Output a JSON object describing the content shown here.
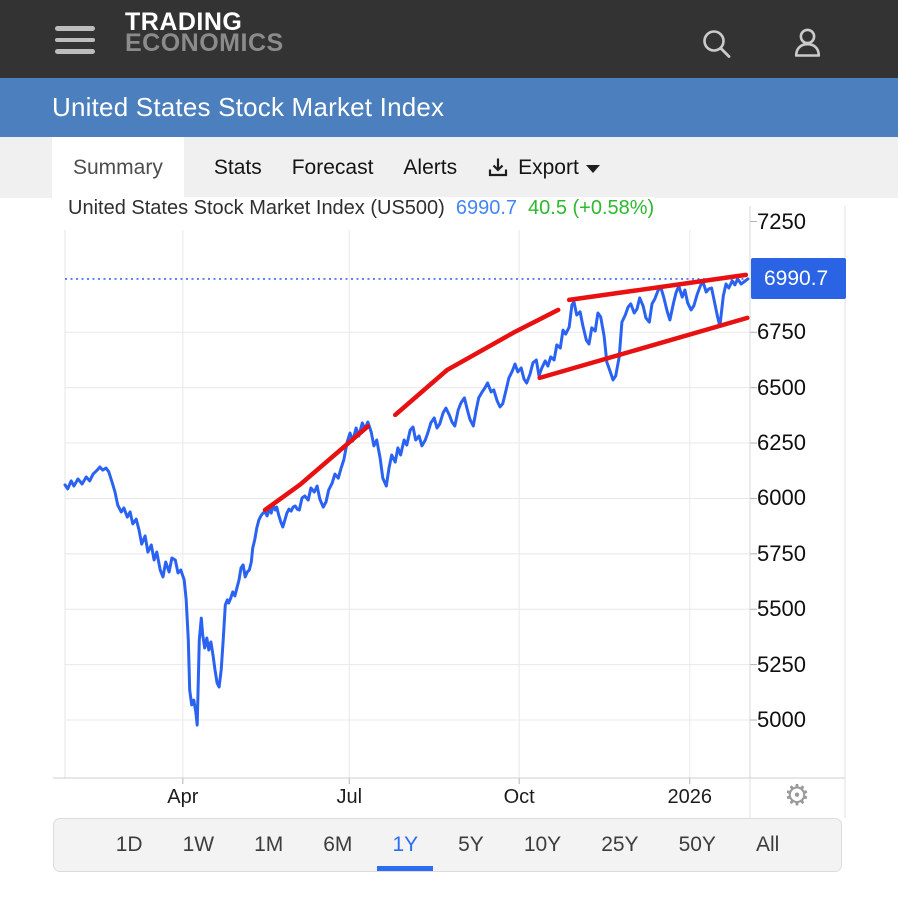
{
  "header": {
    "brand_line1": "TRADING",
    "brand_line2": "ECONOMICS",
    "icons": {
      "menu": "hamburger-icon",
      "search": "search-icon",
      "user": "user-icon"
    }
  },
  "banner": {
    "title": "United States Stock Market Index"
  },
  "tabs": {
    "items": [
      {
        "label": "Summary",
        "active": true
      },
      {
        "label": "Stats",
        "active": false
      },
      {
        "label": "Forecast",
        "active": false
      },
      {
        "label": "Alerts",
        "active": false
      }
    ],
    "export_label": "Export"
  },
  "chart_header": {
    "name": "United States Stock Market Index (US500)",
    "price": "6990.7",
    "change": "40.5 (+0.58%)"
  },
  "icons": {
    "gear_glyph": "⚙"
  },
  "chart_data": {
    "type": "line",
    "title": "United States Stock Market Index (US500)",
    "symbol": "US500",
    "last_price": 6990.7,
    "change": 40.5,
    "change_pct": "+0.58%",
    "range_selected": "1Y",
    "grid": true,
    "ylim": [
      4740,
      7215
    ],
    "y_ticks": [
      7250,
      6750,
      6500,
      6250,
      6000,
      5750,
      5500,
      5250,
      5000
    ],
    "x_ticks": [
      {
        "label": "Apr",
        "t": 0.172
      },
      {
        "label": "Jul",
        "t": 0.415
      },
      {
        "label": "Oct",
        "t": 0.663
      },
      {
        "label": "2026",
        "t": 0.912
      }
    ],
    "colors": {
      "line": "#2a62f2",
      "trend": "#e81010",
      "badge": "#2a63e4",
      "grid": "#e8e8e8",
      "dotted": "#3a6af0",
      "price_up": "#2db92d"
    },
    "series": [
      [
        0.0,
        6061
      ],
      [
        0.004,
        6043
      ],
      [
        0.009,
        6079
      ],
      [
        0.013,
        6056
      ],
      [
        0.019,
        6088
      ],
      [
        0.025,
        6065
      ],
      [
        0.031,
        6097
      ],
      [
        0.036,
        6079
      ],
      [
        0.041,
        6110
      ],
      [
        0.047,
        6128
      ],
      [
        0.051,
        6142
      ],
      [
        0.055,
        6128
      ],
      [
        0.06,
        6137
      ],
      [
        0.064,
        6120
      ],
      [
        0.069,
        6070
      ],
      [
        0.073,
        6029
      ],
      [
        0.077,
        5971
      ],
      [
        0.082,
        5939
      ],
      [
        0.086,
        5957
      ],
      [
        0.091,
        5916
      ],
      [
        0.095,
        5939
      ],
      [
        0.099,
        5885
      ],
      [
        0.104,
        5907
      ],
      [
        0.108,
        5858
      ],
      [
        0.112,
        5794
      ],
      [
        0.117,
        5831
      ],
      [
        0.121,
        5758
      ],
      [
        0.126,
        5790
      ],
      [
        0.13,
        5722
      ],
      [
        0.134,
        5758
      ],
      [
        0.139,
        5677
      ],
      [
        0.143,
        5646
      ],
      [
        0.147,
        5713
      ],
      [
        0.152,
        5668
      ],
      [
        0.156,
        5731
      ],
      [
        0.161,
        5722
      ],
      [
        0.165,
        5664
      ],
      [
        0.169,
        5677
      ],
      [
        0.174,
        5632
      ],
      [
        0.177,
        5542
      ],
      [
        0.18,
        5361
      ],
      [
        0.182,
        5135
      ],
      [
        0.185,
        5068
      ],
      [
        0.188,
        5090
      ],
      [
        0.191,
        5036
      ],
      [
        0.193,
        4977
      ],
      [
        0.196,
        5361
      ],
      [
        0.199,
        5460
      ],
      [
        0.201,
        5384
      ],
      [
        0.204,
        5325
      ],
      [
        0.207,
        5370
      ],
      [
        0.21,
        5316
      ],
      [
        0.213,
        5352
      ],
      [
        0.216,
        5293
      ],
      [
        0.219,
        5226
      ],
      [
        0.222,
        5167
      ],
      [
        0.225,
        5149
      ],
      [
        0.228,
        5226
      ],
      [
        0.231,
        5361
      ],
      [
        0.234,
        5519
      ],
      [
        0.237,
        5542
      ],
      [
        0.239,
        5528
      ],
      [
        0.242,
        5551
      ],
      [
        0.245,
        5578
      ],
      [
        0.248,
        5560
      ],
      [
        0.251,
        5596
      ],
      [
        0.254,
        5632
      ],
      [
        0.257,
        5686
      ],
      [
        0.26,
        5700
      ],
      [
        0.263,
        5646
      ],
      [
        0.266,
        5668
      ],
      [
        0.269,
        5677
      ],
      [
        0.272,
        5713
      ],
      [
        0.274,
        5776
      ],
      [
        0.277,
        5813
      ],
      [
        0.28,
        5867
      ],
      [
        0.283,
        5903
      ],
      [
        0.286,
        5921
      ],
      [
        0.289,
        5934
      ],
      [
        0.292,
        5939
      ],
      [
        0.295,
        5921
      ],
      [
        0.298,
        5952
      ],
      [
        0.301,
        5934
      ],
      [
        0.304,
        5970
      ],
      [
        0.307,
        5948
      ],
      [
        0.309,
        5961
      ],
      [
        0.312,
        5925
      ],
      [
        0.315,
        5894
      ],
      [
        0.318,
        5871
      ],
      [
        0.321,
        5903
      ],
      [
        0.324,
        5934
      ],
      [
        0.327,
        5952
      ],
      [
        0.33,
        5943
      ],
      [
        0.333,
        5961
      ],
      [
        0.336,
        5966
      ],
      [
        0.339,
        5952
      ],
      [
        0.342,
        5948
      ],
      [
        0.346,
        6002
      ],
      [
        0.35,
        6011
      ],
      [
        0.355,
        5993
      ],
      [
        0.359,
        6047
      ],
      [
        0.364,
        6029
      ],
      [
        0.368,
        6056
      ],
      [
        0.372,
        5998
      ],
      [
        0.377,
        5961
      ],
      [
        0.381,
        5984
      ],
      [
        0.385,
        6038
      ],
      [
        0.39,
        6070
      ],
      [
        0.394,
        6110
      ],
      [
        0.399,
        6092
      ],
      [
        0.403,
        6137
      ],
      [
        0.407,
        6174
      ],
      [
        0.412,
        6255
      ],
      [
        0.416,
        6295
      ],
      [
        0.42,
        6259
      ],
      [
        0.425,
        6318
      ],
      [
        0.429,
        6282
      ],
      [
        0.434,
        6341
      ],
      [
        0.438,
        6313
      ],
      [
        0.442,
        6345
      ],
      [
        0.447,
        6300
      ],
      [
        0.451,
        6237
      ],
      [
        0.455,
        6264
      ],
      [
        0.46,
        6183
      ],
      [
        0.464,
        6092
      ],
      [
        0.469,
        6056
      ],
      [
        0.473,
        6137
      ],
      [
        0.477,
        6196
      ],
      [
        0.482,
        6164
      ],
      [
        0.486,
        6228
      ],
      [
        0.49,
        6196
      ],
      [
        0.495,
        6264
      ],
      [
        0.499,
        6241
      ],
      [
        0.504,
        6309
      ],
      [
        0.508,
        6322
      ],
      [
        0.512,
        6264
      ],
      [
        0.517,
        6282
      ],
      [
        0.521,
        6237
      ],
      [
        0.526,
        6264
      ],
      [
        0.53,
        6300
      ],
      [
        0.534,
        6341
      ],
      [
        0.539,
        6363
      ],
      [
        0.543,
        6318
      ],
      [
        0.547,
        6336
      ],
      [
        0.552,
        6386
      ],
      [
        0.556,
        6408
      ],
      [
        0.561,
        6377
      ],
      [
        0.565,
        6345
      ],
      [
        0.569,
        6327
      ],
      [
        0.574,
        6399
      ],
      [
        0.578,
        6431
      ],
      [
        0.583,
        6454
      ],
      [
        0.587,
        6404
      ],
      [
        0.591,
        6359
      ],
      [
        0.596,
        6327
      ],
      [
        0.6,
        6395
      ],
      [
        0.604,
        6454
      ],
      [
        0.609,
        6481
      ],
      [
        0.613,
        6499
      ],
      [
        0.617,
        6521
      ],
      [
        0.622,
        6481
      ],
      [
        0.626,
        6490
      ],
      [
        0.631,
        6440
      ],
      [
        0.635,
        6413
      ],
      [
        0.639,
        6427
      ],
      [
        0.644,
        6490
      ],
      [
        0.648,
        6544
      ],
      [
        0.653,
        6575
      ],
      [
        0.657,
        6607
      ],
      [
        0.661,
        6571
      ],
      [
        0.666,
        6589
      ],
      [
        0.67,
        6539
      ],
      [
        0.674,
        6521
      ],
      [
        0.679,
        6562
      ],
      [
        0.683,
        6612
      ],
      [
        0.688,
        6625
      ],
      [
        0.692,
        6553
      ],
      [
        0.696,
        6589
      ],
      [
        0.701,
        6621
      ],
      [
        0.705,
        6598
      ],
      [
        0.709,
        6639
      ],
      [
        0.714,
        6625
      ],
      [
        0.718,
        6693
      ],
      [
        0.723,
        6679
      ],
      [
        0.727,
        6760
      ],
      [
        0.731,
        6742
      ],
      [
        0.736,
        6774
      ],
      [
        0.74,
        6873
      ],
      [
        0.743,
        6887
      ],
      [
        0.747,
        6828
      ],
      [
        0.752,
        6842
      ],
      [
        0.756,
        6779
      ],
      [
        0.761,
        6715
      ],
      [
        0.765,
        6697
      ],
      [
        0.769,
        6770
      ],
      [
        0.774,
        6756
      ],
      [
        0.778,
        6837
      ],
      [
        0.782,
        6819
      ],
      [
        0.787,
        6733
      ],
      [
        0.791,
        6616
      ],
      [
        0.796,
        6571
      ],
      [
        0.8,
        6535
      ],
      [
        0.804,
        6553
      ],
      [
        0.809,
        6639
      ],
      [
        0.813,
        6796
      ],
      [
        0.818,
        6828
      ],
      [
        0.822,
        6864
      ],
      [
        0.826,
        6878
      ],
      [
        0.831,
        6837
      ],
      [
        0.835,
        6855
      ],
      [
        0.839,
        6905
      ],
      [
        0.844,
        6869
      ],
      [
        0.848,
        6815
      ],
      [
        0.853,
        6796
      ],
      [
        0.857,
        6878
      ],
      [
        0.861,
        6900
      ],
      [
        0.866,
        6941
      ],
      [
        0.87,
        6950
      ],
      [
        0.874,
        6909
      ],
      [
        0.879,
        6846
      ],
      [
        0.883,
        6806
      ],
      [
        0.888,
        6878
      ],
      [
        0.892,
        6928
      ],
      [
        0.896,
        6959
      ],
      [
        0.901,
        6909
      ],
      [
        0.905,
        6941
      ],
      [
        0.909,
        6882
      ],
      [
        0.914,
        6851
      ],
      [
        0.918,
        6869
      ],
      [
        0.923,
        6923
      ],
      [
        0.927,
        6955
      ],
      [
        0.931,
        6982
      ],
      [
        0.936,
        6932
      ],
      [
        0.94,
        6946
      ],
      [
        0.944,
        6950
      ],
      [
        0.949,
        6873
      ],
      [
        0.953,
        6815
      ],
      [
        0.956,
        6778
      ],
      [
        0.961,
        6914
      ],
      [
        0.965,
        6968
      ],
      [
        0.969,
        6950
      ],
      [
        0.974,
        6982
      ],
      [
        0.978,
        6964
      ],
      [
        0.982,
        6991
      ],
      [
        0.987,
        6968
      ],
      [
        0.991,
        6977
      ],
      [
        0.997,
        6991
      ]
    ],
    "trend_lines": [
      {
        "name": "uptrend-1",
        "points": [
          [
            0.292,
            5948
          ],
          [
            0.343,
            6062
          ],
          [
            0.442,
            6325
          ]
        ]
      },
      {
        "name": "uptrend-2",
        "points": [
          [
            0.482,
            6377
          ],
          [
            0.558,
            6580
          ],
          [
            0.654,
            6747
          ],
          [
            0.72,
            6851
          ]
        ]
      },
      {
        "name": "channel-upper",
        "points": [
          [
            0.736,
            6896
          ],
          [
            0.994,
            7009
          ]
        ]
      },
      {
        "name": "channel-lower",
        "points": [
          [
            0.693,
            6544
          ],
          [
            0.996,
            6815
          ]
        ]
      }
    ]
  },
  "range_bar": {
    "options": [
      "1D",
      "1W",
      "1M",
      "6M",
      "1Y",
      "5Y",
      "10Y",
      "25Y",
      "50Y",
      "All"
    ],
    "active": "1Y"
  }
}
